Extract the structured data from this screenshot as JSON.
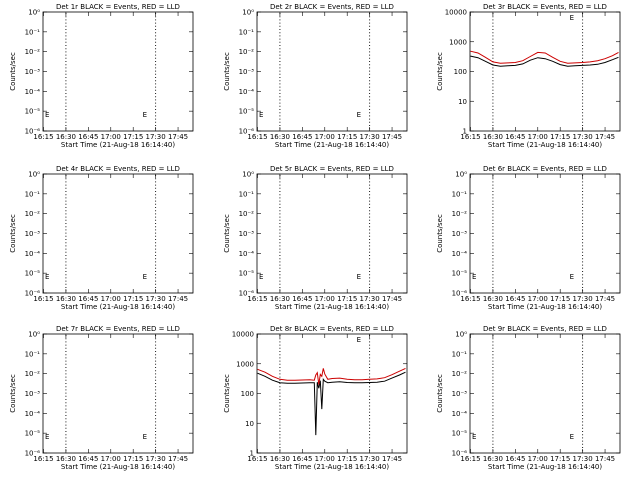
{
  "chart_data": [
    {
      "type": "line",
      "title": "Det 1r BLACK = Events, RED = LLD",
      "xlabel": "Start Time (21-Aug-18 16:14:40)",
      "ylabel": "Counts/sec",
      "xlim": [
        "16:14:40",
        "17:55:00"
      ],
      "yscale": "log",
      "yticks": [
        "10⁰",
        "10⁻¹",
        "10⁻²",
        "10⁻³",
        "10⁻⁴",
        "10⁻⁵",
        "10⁻⁶"
      ],
      "xticks": [
        "16:15",
        "16:30",
        "16:45",
        "17:00",
        "17:15",
        "17:30",
        "17:45"
      ],
      "vlines": [
        "16:30",
        "17:30"
      ],
      "markers": [
        "E",
        "E"
      ],
      "series": []
    },
    {
      "type": "line",
      "title": "Det 2r BLACK = Events, RED = LLD",
      "xlabel": "Start Time (21-Aug-18 16:14:40)",
      "ylabel": "Counts/sec",
      "xlim": [
        "16:14:40",
        "17:55:00"
      ],
      "yscale": "log",
      "yticks": [
        "10⁰",
        "10⁻¹",
        "10⁻²",
        "10⁻³",
        "10⁻⁴",
        "10⁻⁵",
        "10⁻⁶"
      ],
      "xticks": [
        "16:15",
        "16:30",
        "16:45",
        "17:00",
        "17:15",
        "17:30",
        "17:45"
      ],
      "vlines": [
        "16:30",
        "17:30"
      ],
      "markers": [
        "E",
        "E"
      ],
      "series": []
    },
    {
      "type": "line",
      "title": "Det 3r BLACK = Events, RED = LLD",
      "xlabel": "Start Time (21-Aug-18 16:14:40)",
      "ylabel": "Counts/sec",
      "xlim": [
        "16:14:40",
        "17:55:00"
      ],
      "yscale": "log",
      "ylim": [
        1,
        10000
      ],
      "yticks": [
        "10000",
        "1000",
        "100",
        "10",
        "1"
      ],
      "xticks": [
        "16:15",
        "16:30",
        "16:45",
        "17:00",
        "17:15",
        "17:30",
        "17:45"
      ],
      "vlines": [
        "16:30",
        "17:30"
      ],
      "markers": [
        "E"
      ],
      "series": [
        {
          "color": "#000000",
          "x": [
            "16:15",
            "16:20",
            "16:25",
            "16:30",
            "16:35",
            "16:40",
            "16:45",
            "16:50",
            "16:55",
            "17:00",
            "17:05",
            "17:10",
            "17:15",
            "17:20",
            "17:25",
            "17:30",
            "17:35",
            "17:40",
            "17:45",
            "17:50",
            "17:54"
          ],
          "y": [
            330,
            290,
            220,
            165,
            150,
            155,
            160,
            180,
            240,
            290,
            270,
            220,
            170,
            150,
            155,
            160,
            165,
            175,
            200,
            250,
            300
          ]
        },
        {
          "color": "#cc0000",
          "x": [
            "16:15",
            "16:20",
            "16:25",
            "16:30",
            "16:35",
            "16:40",
            "16:45",
            "16:50",
            "16:55",
            "17:00",
            "17:05",
            "17:10",
            "17:15",
            "17:20",
            "17:25",
            "17:30",
            "17:35",
            "17:40",
            "17:45",
            "17:50",
            "17:54"
          ],
          "y": [
            480,
            420,
            300,
            210,
            190,
            195,
            200,
            230,
            320,
            440,
            420,
            300,
            220,
            190,
            195,
            200,
            210,
            230,
            270,
            340,
            440
          ]
        }
      ]
    },
    {
      "type": "line",
      "title": "Det 4r BLACK = Events, RED = LLD",
      "xlabel": "Start Time (21-Aug-18 16:14:40)",
      "ylabel": "Counts/sec",
      "xlim": [
        "16:14:40",
        "17:55:00"
      ],
      "yscale": "log",
      "yticks": [
        "10⁰",
        "10⁻¹",
        "10⁻²",
        "10⁻³",
        "10⁻⁴",
        "10⁻⁵",
        "10⁻⁶"
      ],
      "xticks": [
        "16:15",
        "16:30",
        "16:45",
        "17:00",
        "17:15",
        "17:30",
        "17:45"
      ],
      "vlines": [
        "16:30",
        "17:30"
      ],
      "markers": [
        "E",
        "E"
      ],
      "series": []
    },
    {
      "type": "line",
      "title": "Det 5r BLACK = Events, RED = LLD",
      "xlabel": "Start Time (21-Aug-18 16:14:40)",
      "ylabel": "Counts/sec",
      "xlim": [
        "16:14:40",
        "17:55:00"
      ],
      "yscale": "log",
      "yticks": [
        "10⁰",
        "10⁻¹",
        "10⁻²",
        "10⁻³",
        "10⁻⁴",
        "10⁻⁵",
        "10⁻⁶"
      ],
      "xticks": [
        "16:15",
        "16:30",
        "16:45",
        "17:00",
        "17:15",
        "17:30",
        "17:45"
      ],
      "vlines": [
        "16:30",
        "17:30"
      ],
      "markers": [
        "E",
        "E"
      ],
      "series": []
    },
    {
      "type": "line",
      "title": "Det 6r BLACK = Events, RED = LLD",
      "xlabel": "Start Time (21-Aug-18 16:14:40)",
      "ylabel": "Counts/sec",
      "xlim": [
        "16:14:40",
        "17:55:00"
      ],
      "yscale": "log",
      "yticks": [
        "10⁰",
        "10⁻¹",
        "10⁻²",
        "10⁻³",
        "10⁻⁴",
        "10⁻⁵",
        "10⁻⁶"
      ],
      "xticks": [
        "16:15",
        "16:30",
        "16:45",
        "17:00",
        "17:15",
        "17:30",
        "17:45"
      ],
      "vlines": [
        "16:30",
        "17:30"
      ],
      "markers": [
        "E",
        "E"
      ],
      "series": []
    },
    {
      "type": "line",
      "title": "Det 7r BLACK = Events, RED = LLD",
      "xlabel": "Start Time (21-Aug-18 16:14:40)",
      "ylabel": "Counts/sec",
      "xlim": [
        "16:14:40",
        "17:55:00"
      ],
      "yscale": "log",
      "yticks": [
        "10⁰",
        "10⁻¹",
        "10⁻²",
        "10⁻³",
        "10⁻⁴",
        "10⁻⁵",
        "10⁻⁶"
      ],
      "xticks": [
        "16:15",
        "16:30",
        "16:45",
        "17:00",
        "17:15",
        "17:30",
        "17:45"
      ],
      "vlines": [
        "16:30",
        "17:30"
      ],
      "markers": [
        "E",
        "E"
      ],
      "series": []
    },
    {
      "type": "line",
      "title": "Det 8r BLACK = Events, RED = LLD",
      "xlabel": "Start Time (21-Aug-18 16:14:40)",
      "ylabel": "Counts/sec",
      "xlim": [
        "16:14:40",
        "17:55:00"
      ],
      "yscale": "log",
      "ylim": [
        1,
        10000
      ],
      "yticks": [
        "10000",
        "1000",
        "100",
        "10",
        "1"
      ],
      "xticks": [
        "16:15",
        "16:30",
        "16:45",
        "17:00",
        "17:15",
        "17:30",
        "17:45"
      ],
      "vlines": [
        "16:30",
        "17:30"
      ],
      "markers": [
        "E"
      ],
      "series": [
        {
          "color": "#000000",
          "x": [
            "16:15",
            "16:20",
            "16:25",
            "16:30",
            "16:35",
            "16:40",
            "16:45",
            "16:50",
            "16:53",
            "16:54",
            "16:55",
            "16:56",
            "16:57",
            "16:58",
            "16:59",
            "17:00",
            "17:02",
            "17:05",
            "17:10",
            "17:15",
            "17:20",
            "17:25",
            "17:30",
            "17:35",
            "17:40",
            "17:45",
            "17:50",
            "17:54"
          ],
          "y": [
            480,
            380,
            280,
            230,
            220,
            220,
            225,
            230,
            230,
            4,
            240,
            150,
            270,
            30,
            300,
            260,
            230,
            240,
            250,
            235,
            230,
            230,
            235,
            240,
            260,
            330,
            420,
            520
          ]
        },
        {
          "color": "#cc0000",
          "x": [
            "16:15",
            "16:20",
            "16:25",
            "16:30",
            "16:35",
            "16:40",
            "16:45",
            "16:50",
            "16:53",
            "16:54",
            "16:55",
            "16:56",
            "16:57",
            "16:58",
            "16:59",
            "17:00",
            "17:02",
            "17:05",
            "17:10",
            "17:15",
            "17:20",
            "17:25",
            "17:30",
            "17:35",
            "17:40",
            "17:45",
            "17:50",
            "17:54"
          ],
          "y": [
            650,
            520,
            380,
            300,
            280,
            280,
            285,
            290,
            280,
            420,
            500,
            200,
            440,
            380,
            700,
            450,
            300,
            320,
            330,
            300,
            290,
            290,
            300,
            310,
            340,
            430,
            560,
            700
          ]
        }
      ]
    },
    {
      "type": "line",
      "title": "Det 9r BLACK = Events, RED = LLD",
      "xlabel": "Start Time (21-Aug-18 16:14:40)",
      "ylabel": "Counts/sec",
      "xlim": [
        "16:14:40",
        "17:55:00"
      ],
      "yscale": "log",
      "yticks": [
        "10⁰",
        "10⁻¹",
        "10⁻²",
        "10⁻³",
        "10⁻⁴",
        "10⁻⁵",
        "10⁻⁶"
      ],
      "xticks": [
        "16:15",
        "16:30",
        "16:45",
        "17:00",
        "17:15",
        "17:30",
        "17:45"
      ],
      "vlines": [
        "16:30",
        "17:30"
      ],
      "markers": [
        "E",
        "E"
      ],
      "series": []
    }
  ]
}
